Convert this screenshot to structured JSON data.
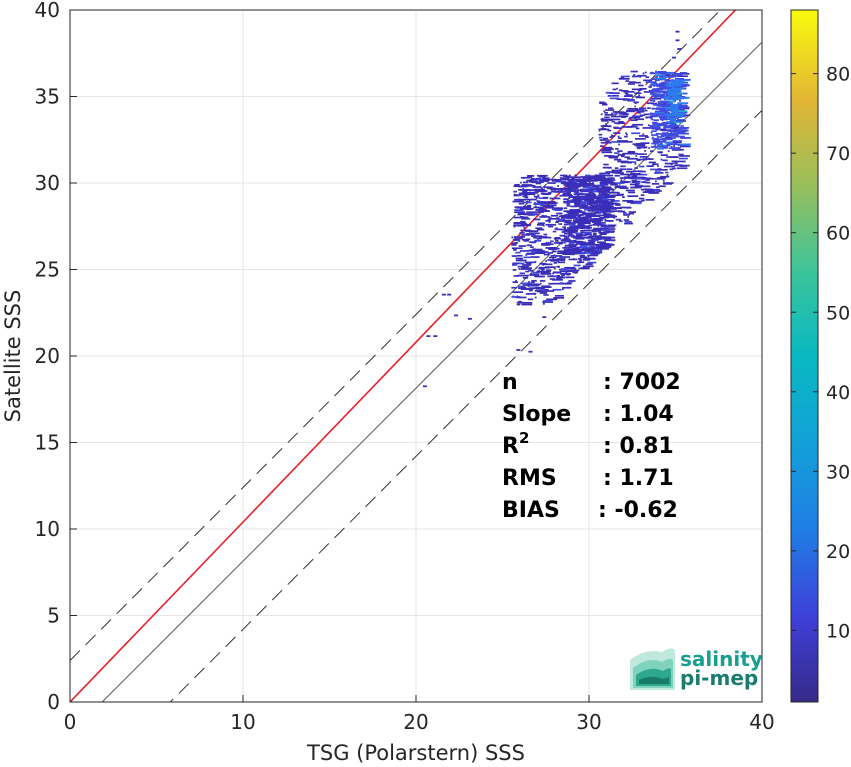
{
  "chart_data": {
    "type": "heatmap",
    "title": "",
    "xlabel": "TSG (Polarstern) SSS",
    "ylabel": "Satellite SSS",
    "xlim": [
      0,
      40
    ],
    "ylim": [
      0,
      40
    ],
    "xticks": [
      "0",
      "10",
      "20",
      "30",
      "40"
    ],
    "yticks": [
      "0",
      "5",
      "10",
      "15",
      "20",
      "25",
      "30",
      "35",
      "40"
    ],
    "grid": true,
    "colorbar": {
      "range": [
        1,
        88
      ],
      "ticks": [
        "10",
        "20",
        "30",
        "40",
        "50",
        "60",
        "70",
        "80"
      ],
      "colormap": "parula"
    },
    "reference_lines": [
      {
        "name": "identity",
        "style": "solid",
        "color": "#555555"
      },
      {
        "name": "regression",
        "style": "solid",
        "color": "#e8202a"
      },
      {
        "name": "upper-bound",
        "style": "dashed",
        "color": "#333333"
      },
      {
        "name": "lower-bound",
        "style": "dashed",
        "color": "#333333"
      }
    ],
    "regression": {
      "slope": 1.04,
      "intercept": 0.0
    },
    "stats": [
      {
        "label": "n",
        "value": ": 7002"
      },
      {
        "label": "Slope",
        "value": ": 1.04"
      },
      {
        "label": "R",
        "sup": "2",
        "value": ": 0.81"
      },
      {
        "label": "RMS",
        "value": ": 1.71"
      },
      {
        "label": "BIAS",
        "value": ": -0.62"
      }
    ],
    "density_clusters": [
      {
        "x": [
          25.5,
          31
        ],
        "y": [
          23,
          30.5
        ],
        "count": 900,
        "level": 1
      },
      {
        "x": [
          28.5,
          31
        ],
        "y": [
          26,
          30.5
        ],
        "count": 420,
        "level": 1
      },
      {
        "x": [
          30.5,
          35.3
        ],
        "y": [
          27.5,
          36.5
        ],
        "count": 650,
        "level": 1
      },
      {
        "x": [
          33.5,
          35.3
        ],
        "y": [
          32,
          36.5
        ],
        "count": 300,
        "level": 2
      },
      {
        "x": [
          34.3,
          35.2
        ],
        "y": [
          33.5,
          36
        ],
        "count": 90,
        "level": 3
      }
    ],
    "sparse_points": [
      [
        20.4,
        18.3
      ],
      [
        20.6,
        21.2
      ],
      [
        21.0,
        21.2
      ],
      [
        21.5,
        23.6
      ],
      [
        21.8,
        23.6
      ],
      [
        22.2,
        22.4
      ],
      [
        23.0,
        22.2
      ],
      [
        25.8,
        20.4
      ],
      [
        26.5,
        20.3
      ],
      [
        27.3,
        22.3
      ],
      [
        35.0,
        38.8
      ],
      [
        35.0,
        38.3
      ],
      [
        35.1,
        37.8
      ],
      [
        34.8,
        37.3
      ]
    ]
  },
  "logo": {
    "line1": "salinity",
    "line2": "pi-mep",
    "color": "#1a9e8f"
  }
}
